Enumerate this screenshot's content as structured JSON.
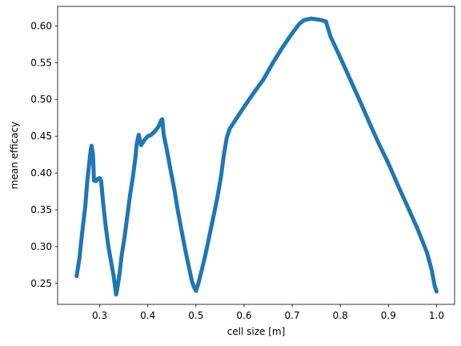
{
  "chart_data": {
    "type": "scatter",
    "title": "",
    "xlabel": "cell size [m]",
    "ylabel": "mean efficacy",
    "xlim": [
      0.2125,
      1.0375
    ],
    "ylim": [
      0.2215,
      0.6265
    ],
    "xticks": [
      0.3,
      0.4,
      0.5,
      0.6,
      0.7,
      0.8,
      0.9,
      1.0
    ],
    "xtick_labels": [
      "0.3",
      "0.4",
      "0.5",
      "0.6",
      "0.7",
      "0.8",
      "0.9",
      "1.0"
    ],
    "yticks": [
      0.25,
      0.3,
      0.35,
      0.4,
      0.45,
      0.5,
      0.55,
      0.6
    ],
    "ytick_labels": [
      "0.25",
      "0.30",
      "0.35",
      "0.40",
      "0.45",
      "0.50",
      "0.55",
      "0.60"
    ],
    "grid": false,
    "marker_color": "#1f77b4",
    "series": [
      {
        "name": "",
        "anchors": [
          [
            0.252,
            0.26
          ],
          [
            0.258,
            0.285
          ],
          [
            0.262,
            0.31
          ],
          [
            0.266,
            0.333
          ],
          [
            0.27,
            0.355
          ],
          [
            0.274,
            0.388
          ],
          [
            0.278,
            0.412
          ],
          [
            0.281,
            0.43
          ],
          [
            0.283,
            0.437
          ],
          [
            0.286,
            0.425
          ],
          [
            0.288,
            0.39
          ],
          [
            0.292,
            0.389
          ],
          [
            0.296,
            0.392
          ],
          [
            0.3,
            0.393
          ],
          [
            0.303,
            0.389
          ],
          [
            0.307,
            0.36
          ],
          [
            0.312,
            0.33
          ],
          [
            0.318,
            0.3
          ],
          [
            0.324,
            0.278
          ],
          [
            0.329,
            0.26
          ],
          [
            0.332,
            0.245
          ],
          [
            0.334,
            0.235
          ],
          [
            0.337,
            0.245
          ],
          [
            0.341,
            0.262
          ],
          [
            0.346,
            0.29
          ],
          [
            0.351,
            0.31
          ],
          [
            0.357,
            0.34
          ],
          [
            0.363,
            0.37
          ],
          [
            0.369,
            0.395
          ],
          [
            0.374,
            0.42
          ],
          [
            0.377,
            0.44
          ],
          [
            0.381,
            0.452
          ],
          [
            0.386,
            0.438
          ],
          [
            0.393,
            0.445
          ],
          [
            0.4,
            0.45
          ],
          [
            0.407,
            0.452
          ],
          [
            0.415,
            0.457
          ],
          [
            0.422,
            0.463
          ],
          [
            0.428,
            0.472
          ],
          [
            0.43,
            0.473
          ],
          [
            0.433,
            0.452
          ],
          [
            0.44,
            0.43
          ],
          [
            0.447,
            0.405
          ],
          [
            0.455,
            0.378
          ],
          [
            0.462,
            0.35
          ],
          [
            0.47,
            0.322
          ],
          [
            0.478,
            0.295
          ],
          [
            0.486,
            0.27
          ],
          [
            0.492,
            0.252
          ],
          [
            0.496,
            0.245
          ],
          [
            0.5,
            0.24
          ],
          [
            0.505,
            0.25
          ],
          [
            0.512,
            0.268
          ],
          [
            0.52,
            0.29
          ],
          [
            0.528,
            0.315
          ],
          [
            0.536,
            0.34
          ],
          [
            0.544,
            0.365
          ],
          [
            0.552,
            0.395
          ],
          [
            0.558,
            0.425
          ],
          [
            0.564,
            0.448
          ],
          [
            0.57,
            0.46
          ],
          [
            0.58,
            0.47
          ],
          [
            0.6,
            0.49
          ],
          [
            0.62,
            0.509
          ],
          [
            0.64,
            0.527
          ],
          [
            0.66,
            0.55
          ],
          [
            0.68,
            0.571
          ],
          [
            0.7,
            0.59
          ],
          [
            0.715,
            0.603
          ],
          [
            0.725,
            0.608
          ],
          [
            0.74,
            0.61
          ],
          [
            0.75,
            0.609
          ],
          [
            0.76,
            0.608
          ],
          [
            0.77,
            0.606
          ],
          [
            0.78,
            0.585
          ],
          [
            0.8,
            0.557
          ],
          [
            0.82,
            0.528
          ],
          [
            0.84,
            0.499
          ],
          [
            0.86,
            0.469
          ],
          [
            0.88,
            0.44
          ],
          [
            0.9,
            0.413
          ],
          [
            0.92,
            0.383
          ],
          [
            0.94,
            0.354
          ],
          [
            0.96,
            0.325
          ],
          [
            0.98,
            0.292
          ],
          [
            0.99,
            0.268
          ],
          [
            0.996,
            0.247
          ],
          [
            1.0,
            0.239
          ]
        ]
      }
    ]
  }
}
